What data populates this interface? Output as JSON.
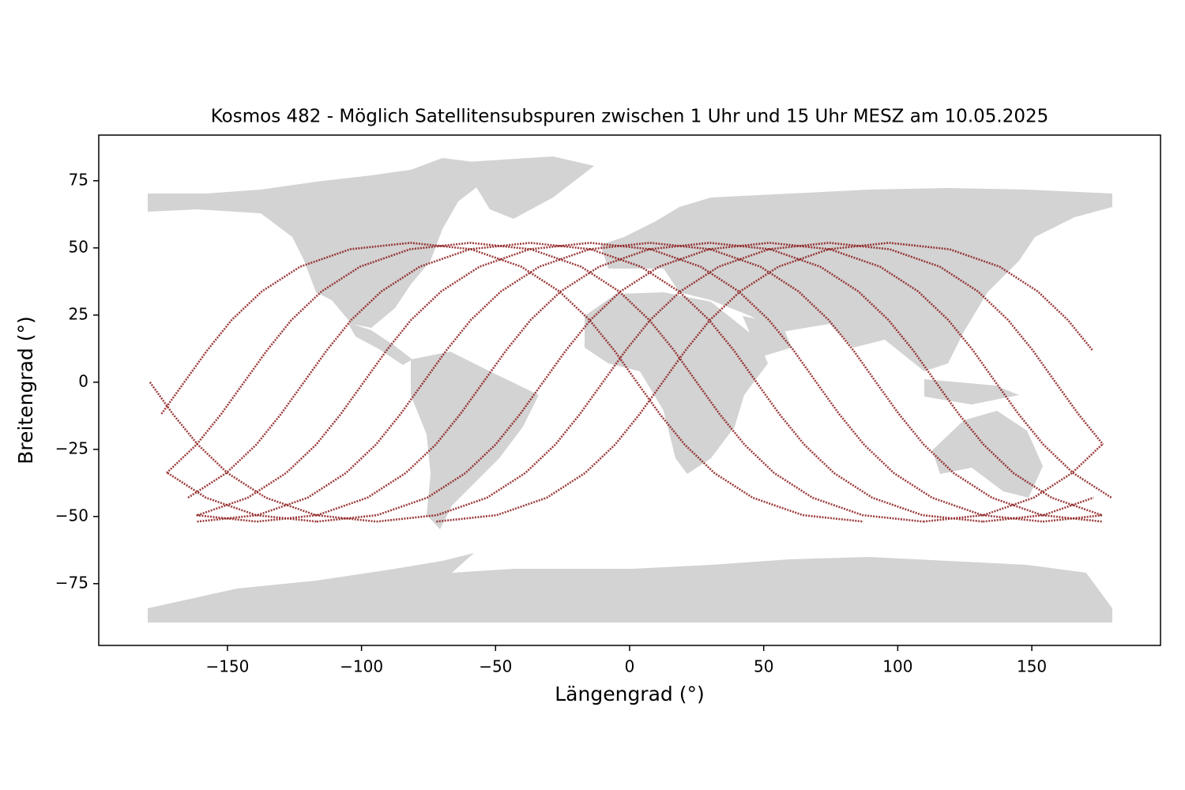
{
  "chart_data": {
    "type": "line",
    "title": "Kosmos 482 - Möglich Satellitensubspuren zwischen 1 Uhr und 15 Uhr MESZ am 10.05.2025",
    "x_label": "Längengrad (°)",
    "y_label": "Breitengrad (°)",
    "xlim": [
      -198,
      198
    ],
    "ylim": [
      -98,
      92
    ],
    "xticks": [
      {
        "value": -150,
        "label": "−150"
      },
      {
        "value": -100,
        "label": "−100"
      },
      {
        "value": -50,
        "label": "−50"
      },
      0,
      50,
      100,
      150
    ],
    "yticks": [
      {
        "value": -75,
        "label": "−75"
      },
      {
        "value": -50,
        "label": "−50"
      },
      {
        "value": -25,
        "label": "−25"
      },
      0,
      25,
      50,
      75
    ],
    "grid": false,
    "series": [
      {
        "color": "#8b1a1a",
        "x": [
          -72.1,
          -49.6,
          -30.9,
          -16.6,
          -5.4,
          3.8,
          12.3,
          20.8,
          30.0,
          41.2,
          55.5,
          74.2,
          96.7,
          119.3,
          138.0,
          152.2,
          163.4,
          172.7,
          null,
          -178.9,
          -170.4,
          -161.1,
          -150.0,
          -135.7,
          -117.0,
          -94.4
        ],
        "values": [
          -51.9,
          -49.5,
          -43.0,
          -33.8,
          -23.2,
          -11.8,
          0,
          11.8,
          23.2,
          33.8,
          43.0,
          49.5,
          51.9,
          49.5,
          43.0,
          33.8,
          23.2,
          11.8,
          null,
          0,
          -11.8,
          -23.2,
          -33.8,
          -43.0,
          -49.5,
          -51.9
        ]
      },
      {
        "color": "#8b1a1a",
        "x": [
          -94.4,
          -71.9,
          -53.2,
          -38.9,
          -27.7,
          -18.5,
          -10,
          -1.5,
          7.7,
          18.9,
          33.2,
          51.9,
          74.4,
          97.0,
          115.7,
          129.9,
          141.1,
          150.4,
          158.8,
          167.3,
          176.6,
          null,
          -172.3,
          -158.0,
          -139.3,
          -116.7
        ],
        "values": [
          -51.9,
          -49.5,
          -43.0,
          -33.8,
          -23.2,
          -11.8,
          0,
          11.8,
          23.2,
          33.8,
          43.0,
          49.5,
          51.9,
          49.5,
          43.0,
          33.8,
          23.2,
          11.8,
          0,
          -11.8,
          -23.2,
          null,
          -33.8,
          -43.0,
          -49.5,
          -51.9
        ]
      },
      {
        "color": "#8b1a1a",
        "x": [
          -116.7,
          -94.2,
          -75.5,
          -61.2,
          -50.0,
          -40.8,
          -32.3,
          -23.8,
          -14.6,
          -3.4,
          10.9,
          29.6,
          52.1,
          74.7,
          93.4,
          107.6,
          118.8,
          128.1,
          136.5,
          145.0,
          154.3,
          165.4,
          179.7,
          null,
          -161.6,
          -139.0
        ],
        "values": [
          -51.9,
          -49.5,
          -43.0,
          -33.8,
          -23.2,
          -11.8,
          0,
          11.8,
          23.2,
          33.8,
          43.0,
          49.5,
          51.9,
          49.5,
          43.0,
          33.8,
          23.2,
          11.8,
          0,
          -11.8,
          -23.2,
          -33.8,
          -43.0,
          null,
          -49.5,
          -51.9
        ]
      },
      {
        "color": "#8b1a1a",
        "x": [
          -139.0,
          -116.5,
          -97.8,
          -83.5,
          -72.3,
          -63.1,
          -54.6,
          -46.1,
          -36.9,
          -25.7,
          -11.4,
          7.3,
          29.8,
          52.4,
          71.1,
          85.3,
          96.5,
          105.8,
          114.2,
          122.7,
          132.0,
          143.1,
          157.4,
          176.1,
          null,
          -161.3
        ],
        "values": [
          -51.9,
          -49.5,
          -43.0,
          -33.8,
          -23.2,
          -11.8,
          0,
          11.8,
          23.2,
          33.8,
          43.0,
          49.5,
          51.9,
          49.5,
          43.0,
          33.8,
          23.2,
          11.8,
          0,
          -11.8,
          -23.2,
          -33.8,
          -43.0,
          -49.5,
          null,
          -51.9
        ]
      },
      {
        "color": "#8b1a1a",
        "x": [
          -161.3,
          -138.8,
          -120.1,
          -105.8,
          -94.6,
          -85.4,
          -76.9,
          -68.4,
          -59.2,
          -48.0,
          -33.7,
          -15.0,
          7.5,
          30.1,
          48.8,
          63.0,
          74.2,
          83.5,
          91.9,
          100.4,
          109.7,
          120.8,
          135.1,
          153.8,
          176.4
        ],
        "values": [
          -51.9,
          -49.5,
          -43.0,
          -33.8,
          -23.2,
          -11.8,
          0,
          11.8,
          23.2,
          33.8,
          43.0,
          49.5,
          51.9,
          49.5,
          43.0,
          33.8,
          23.2,
          11.8,
          0,
          -11.8,
          -23.2,
          -33.8,
          -43.0,
          -49.5,
          -51.9
        ]
      },
      {
        "color": "#8b1a1a",
        "x": [
          176.4,
          null,
          -161.1,
          -142.4,
          -128.1,
          -116.9,
          -107.7,
          -99.2,
          -90.7,
          -81.5,
          -70.3,
          -56.0,
          -37.3,
          -14.8,
          7.8,
          26.5,
          40.7,
          51.9,
          61.2,
          69.6,
          78.1,
          87.4,
          98.5,
          112.8,
          131.5,
          154.1
        ],
        "values": [
          -51.9,
          null,
          -49.5,
          -43.0,
          -33.8,
          -23.2,
          -11.8,
          0,
          11.8,
          23.2,
          33.8,
          43.0,
          49.5,
          51.9,
          49.5,
          43.0,
          33.8,
          23.2,
          11.8,
          0,
          -11.8,
          -23.2,
          -33.8,
          -43.0,
          -49.5,
          -51.9
        ]
      },
      {
        "color": "#8b1a1a",
        "x": [
          154.1,
          176.6,
          null,
          -164.7,
          -150.4,
          -139.2,
          -130.0,
          -121.5,
          -113.0,
          -103.8,
          -92.6,
          -78.3,
          -59.6,
          -37.1,
          -14.5,
          4.2,
          18.4,
          29.6,
          38.9,
          47.3,
          55.8,
          65.1,
          76.2,
          90.5,
          109.2,
          131.8
        ],
        "values": [
          -51.9,
          -49.5,
          null,
          -43.0,
          -33.8,
          -23.2,
          -11.8,
          0,
          11.8,
          23.2,
          33.8,
          43.0,
          49.5,
          51.9,
          49.5,
          43.0,
          33.8,
          23.2,
          11.8,
          0,
          -11.8,
          -23.2,
          -33.8,
          -43.0,
          -49.5,
          -51.9
        ]
      },
      {
        "color": "#8b1a1a",
        "x": [
          131.8,
          154.3,
          173.0,
          null,
          -172.7,
          -161.5,
          -152.3,
          -143.8,
          -135.3,
          -126.1,
          -114.9,
          -100.6,
          -81.9,
          -59.4,
          -36.8,
          -18.1,
          -3.9,
          7.3,
          16.6,
          25.0,
          33.5,
          42.8,
          53.9,
          68.2,
          86.9,
          109.5
        ],
        "values": [
          -51.9,
          -49.5,
          -43.0,
          null,
          -33.8,
          -23.2,
          -11.8,
          0,
          11.8,
          23.2,
          33.8,
          43.0,
          49.5,
          51.9,
          49.5,
          43.0,
          33.8,
          23.2,
          11.8,
          0,
          -11.8,
          -23.2,
          -33.8,
          -43.0,
          -49.5,
          -51.9
        ]
      },
      {
        "color": "#8b1a1a",
        "x": [
          109.5,
          132.0,
          150.7,
          165.0,
          176.2,
          null,
          -174.6,
          -166.1,
          -157.6,
          -148.4,
          -137.2,
          -122.9,
          -104.2,
          -81.7,
          -59.1,
          -40.4,
          -26.2,
          -15.0,
          -5.7,
          2.7,
          11.2,
          20.5,
          31.6,
          45.9,
          64.6,
          87.2
        ],
        "values": [
          -51.9,
          -49.5,
          -43.0,
          -33.8,
          -23.2,
          null,
          -11.8,
          0,
          11.8,
          23.2,
          33.8,
          43.0,
          49.5,
          51.9,
          49.5,
          43.0,
          33.8,
          23.2,
          11.8,
          0,
          -11.8,
          -23.2,
          -33.8,
          -43.0,
          -49.5,
          -51.9
        ]
      }
    ]
  }
}
